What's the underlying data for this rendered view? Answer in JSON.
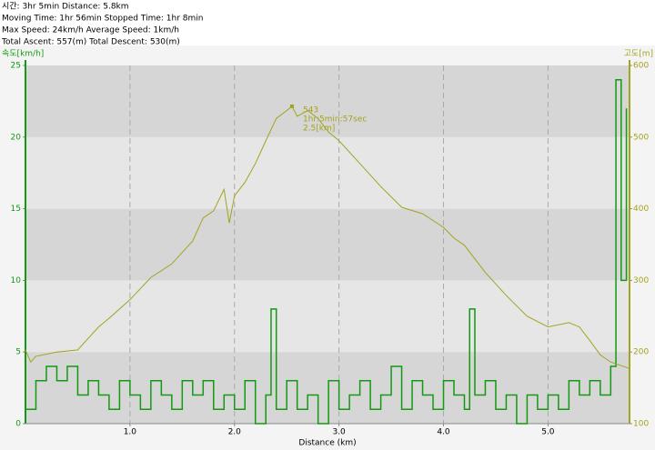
{
  "chart_data": {
    "type": "line",
    "header": [
      "시간: 3hr 5min   Distance: 5.8km",
      "Moving Time: 1hr 56min   Stopped Time: 1hr 8min",
      "Max Speed: 24km/h   Average Speed: 1km/h",
      "Total Ascent: 557(m)   Total Descent: 530(m)"
    ],
    "xlabel": "Distance (km)",
    "ylabel": "속도[km/h]",
    "y2label": "고도[m]",
    "xlim": [
      0,
      5.78
    ],
    "xticks": [
      {
        "value": 1,
        "label": "1.0"
      },
      {
        "value": 2,
        "label": "2.0"
      },
      {
        "value": 3,
        "label": "3.0"
      },
      {
        "value": 4,
        "label": "4.0"
      },
      {
        "value": 5,
        "label": "5.0"
      }
    ],
    "ylim": [
      0,
      25
    ],
    "yticks": [
      0,
      5,
      10,
      15,
      20,
      25
    ],
    "y2lim": [
      100,
      600
    ],
    "y2ticks": [
      100,
      200,
      300,
      400,
      500,
      600
    ],
    "grid": true,
    "band_colors": [
      "#d6d6d6",
      "#e6e6e6"
    ],
    "series": [
      {
        "name": "속도",
        "color": "#129a12",
        "step": true,
        "x": [
          0,
          0.1,
          0.2,
          0.3,
          0.4,
          0.5,
          0.6,
          0.7,
          0.8,
          0.9,
          1.0,
          1.1,
          1.2,
          1.3,
          1.4,
          1.5,
          1.6,
          1.7,
          1.8,
          1.9,
          2.0,
          2.1,
          2.2,
          2.3,
          2.35,
          2.4,
          2.5,
          2.6,
          2.7,
          2.8,
          2.9,
          3.0,
          3.1,
          3.2,
          3.3,
          3.4,
          3.5,
          3.6,
          3.7,
          3.8,
          3.9,
          4.0,
          4.1,
          4.2,
          4.25,
          4.3,
          4.4,
          4.5,
          4.6,
          4.7,
          4.8,
          4.9,
          5.0,
          5.1,
          5.2,
          5.3,
          5.4,
          5.5,
          5.6,
          5.65,
          5.7,
          5.75
        ],
        "values": [
          1,
          3,
          4,
          3,
          4,
          2,
          3,
          2,
          1,
          3,
          2,
          1,
          3,
          2,
          1,
          3,
          2,
          3,
          1,
          2,
          1,
          3,
          0,
          2,
          8,
          1,
          3,
          1,
          2,
          0,
          3,
          1,
          2,
          3,
          1,
          2,
          4,
          1,
          3,
          2,
          1,
          3,
          2,
          1,
          8,
          2,
          3,
          1,
          2,
          0,
          2,
          1,
          2,
          1,
          3,
          2,
          3,
          2,
          4,
          24,
          10,
          22
        ]
      },
      {
        "name": "고도",
        "color": "#a3a320",
        "axis": "y2",
        "x": [
          0,
          0.05,
          0.1,
          0.3,
          0.5,
          0.7,
          0.8,
          1.0,
          1.2,
          1.4,
          1.6,
          1.7,
          1.8,
          1.9,
          1.95,
          2.0,
          2.1,
          2.2,
          2.3,
          2.4,
          2.5,
          2.55,
          2.6,
          2.7,
          2.8,
          2.9,
          3.0,
          3.2,
          3.4,
          3.6,
          3.8,
          4.0,
          4.1,
          4.2,
          4.4,
          4.6,
          4.8,
          5.0,
          5.2,
          5.3,
          5.4,
          5.5,
          5.6,
          5.7,
          5.78
        ],
        "values": [
          203,
          186,
          194,
          200,
          203,
          235,
          247,
          273,
          304,
          323,
          355,
          387,
          397,
          427,
          380,
          418,
          437,
          463,
          495,
          526,
          537,
          543,
          529,
          537,
          526,
          507,
          495,
          463,
          431,
          402,
          393,
          374,
          359,
          349,
          311,
          279,
          250,
          235,
          241,
          235,
          216,
          196,
          186,
          181,
          177
        ]
      }
    ],
    "annotation": {
      "x": 2.55,
      "y": 543,
      "text": [
        "543",
        "1hr:5min:57sec",
        "2.5[km]"
      ]
    }
  }
}
